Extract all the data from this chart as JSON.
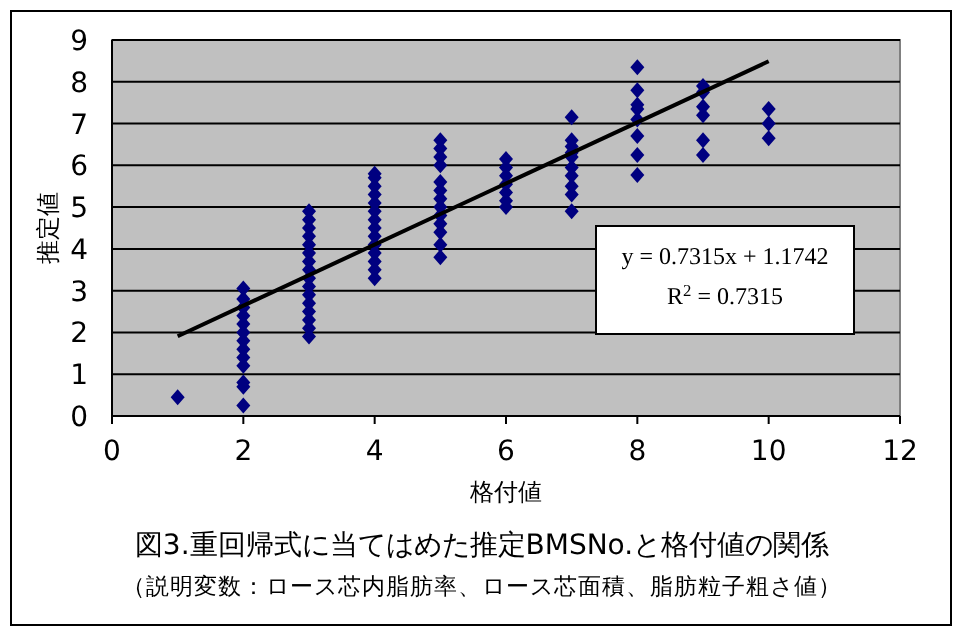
{
  "chart_data": {
    "type": "scatter",
    "title": "図3.重回帰式に当てはめた推定BMSNo.と格付値の関係",
    "subtitle": "（説明変数：ロース芯内脂肪率、ロース芯面積、脂肪粒子粗さ値）",
    "xlabel": "格付値",
    "ylabel": "推定値",
    "xlim": [
      0,
      12
    ],
    "xticks": [
      0,
      2,
      4,
      6,
      8,
      10,
      12
    ],
    "ylim": [
      0,
      9
    ],
    "yticks": [
      0,
      1,
      2,
      3,
      4,
      5,
      6,
      7,
      8,
      9
    ],
    "grid": "y",
    "marker": "diamond",
    "series": [
      {
        "color": "#000080",
        "x": [
          1,
          2,
          2,
          2,
          2,
          2,
          2,
          2,
          2,
          2,
          2,
          2,
          2,
          2,
          3,
          3,
          3,
          3,
          3,
          3,
          3,
          3,
          3,
          3,
          3,
          3,
          3,
          3,
          3,
          3,
          4,
          4,
          4,
          4,
          4,
          4,
          4,
          4,
          4,
          4,
          4,
          4,
          4,
          4,
          5,
          5,
          5,
          5,
          5,
          5,
          5,
          5,
          5,
          5,
          5,
          5,
          5,
          6,
          6,
          6,
          6,
          6,
          6,
          6,
          7,
          7,
          7,
          7,
          7,
          7,
          7,
          7,
          7,
          7,
          8,
          8,
          8,
          8,
          8,
          8,
          8,
          8,
          9,
          9,
          9,
          9,
          9,
          9,
          10,
          10,
          10
        ],
        "values": [
          0.45,
          0.25,
          0.7,
          0.8,
          1.2,
          1.4,
          1.6,
          1.8,
          2.0,
          2.2,
          2.4,
          2.6,
          2.8,
          3.05,
          1.9,
          2.1,
          2.3,
          2.5,
          2.7,
          2.9,
          3.1,
          3.3,
          3.5,
          3.7,
          3.9,
          4.1,
          4.3,
          4.5,
          4.7,
          4.9,
          3.3,
          3.5,
          3.7,
          3.9,
          4.1,
          4.3,
          4.5,
          4.7,
          4.9,
          5.1,
          5.3,
          5.5,
          5.7,
          5.8,
          3.8,
          4.1,
          4.4,
          4.6,
          4.8,
          5.0,
          5.2,
          5.4,
          5.6,
          6.0,
          6.2,
          6.4,
          6.6,
          6.15,
          5.95,
          5.75,
          5.55,
          5.35,
          5.15,
          5.0,
          7.15,
          6.6,
          6.45,
          6.3,
          6.2,
          5.95,
          5.75,
          5.5,
          5.3,
          4.9,
          8.35,
          7.8,
          7.45,
          7.35,
          7.1,
          6.7,
          6.25,
          5.77,
          7.9,
          7.75,
          7.4,
          7.2,
          6.6,
          6.25,
          7.35,
          7.0,
          6.65
        ]
      },
      {
        "type": "line",
        "color": "#000000",
        "marker": "none",
        "x": [
          1,
          10
        ],
        "values": [
          1.91,
          8.49
        ]
      }
    ],
    "annotations": [
      "y = 0.7315x + 1.1742",
      "R$^{2}$ = 0.7315"
    ]
  }
}
